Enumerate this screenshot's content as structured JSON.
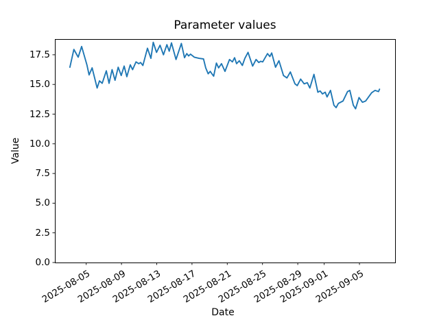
{
  "window": {
    "kind": "matplotlib-style figure",
    "background": "#ffffff"
  },
  "chart": {
    "title": "Parameter values",
    "xlabel": "Date",
    "ylabel": "Value"
  },
  "chart_data": {
    "type": "line",
    "title": "Parameter values",
    "xlabel": "Date",
    "ylabel": "Value",
    "grid": false,
    "legend": false,
    "x_axis": {
      "start_date": "2025-08-03",
      "x_unit": "days since 2025-08-03",
      "tick_labels": [
        "2025-08-05",
        "2025-08-09",
        "2025-08-13",
        "2025-08-17",
        "2025-08-21",
        "2025-08-25",
        "2025-08-29",
        "2025-09-01",
        "2025-09-05"
      ],
      "tick_day_offsets": [
        2,
        6,
        10,
        14,
        18,
        22,
        26,
        29,
        33
      ],
      "tick_rotation_deg": 31
    },
    "y_axis": {
      "tick_labels": [
        "0.0",
        "2.5",
        "5.0",
        "7.5",
        "10.0",
        "12.5",
        "15.0",
        "17.5"
      ],
      "tick_values": [
        0,
        2.5,
        5,
        7.5,
        10,
        12.5,
        15,
        17.5
      ],
      "range": [
        0,
        18.8
      ]
    },
    "series": [
      {
        "name": "parameter-values",
        "color": "#1f77b4",
        "x_days": [
          0.15,
          0.6,
          1.09,
          1.48,
          2.08,
          2.33,
          2.67,
          3.24,
          3.5,
          3.81,
          4.28,
          4.59,
          4.93,
          5.27,
          5.63,
          5.97,
          6.3,
          6.61,
          7.0,
          7.26,
          7.65,
          7.96,
          8.17,
          8.43,
          8.95,
          9.34,
          9.6,
          9.98,
          10.37,
          10.76,
          11.15,
          11.42,
          11.67,
          12.19,
          12.79,
          13.15,
          13.41,
          13.62,
          13.83,
          14.26,
          14.79,
          15.31,
          15.56,
          15.84,
          16.07,
          16.3,
          16.46,
          16.77,
          17.02,
          17.35,
          17.74,
          18.26,
          18.58,
          18.83,
          19.06,
          19.37,
          19.71,
          20.0,
          20.36,
          20.88,
          21.27,
          21.58,
          21.79,
          22.02,
          22.57,
          22.83,
          23.04,
          23.48,
          23.87,
          24.38,
          24.77,
          25.16,
          25.68,
          25.94,
          26.33,
          26.72,
          27.08,
          27.37,
          27.84,
          28.28,
          28.54,
          28.8,
          29.11,
          29.32,
          29.71,
          30.1,
          30.35,
          30.61,
          31.13,
          31.65,
          31.91,
          32.3,
          32.56,
          32.95,
          33.34,
          33.7,
          34.38,
          34.77,
          35.16,
          35.28
        ],
        "values": [
          16.45,
          17.95,
          17.3,
          18.2,
          16.65,
          15.8,
          16.4,
          14.7,
          15.3,
          15.1,
          16.15,
          15.1,
          16.25,
          15.35,
          16.45,
          15.75,
          16.55,
          15.65,
          16.65,
          16.25,
          16.9,
          16.75,
          16.85,
          16.6,
          18.05,
          17.2,
          18.55,
          17.7,
          18.3,
          17.5,
          18.35,
          17.8,
          18.5,
          17.1,
          18.45,
          17.25,
          17.6,
          17.4,
          17.55,
          17.3,
          17.2,
          17.15,
          16.4,
          15.9,
          16.1,
          15.85,
          15.7,
          16.8,
          16.4,
          16.75,
          16.1,
          17.1,
          16.9,
          17.25,
          16.75,
          17.0,
          16.6,
          17.2,
          17.7,
          16.55,
          17.1,
          16.85,
          16.95,
          16.9,
          17.6,
          17.35,
          17.65,
          16.45,
          17.0,
          15.75,
          15.55,
          16.05,
          15.05,
          14.9,
          15.45,
          15.05,
          15.15,
          14.7,
          15.85,
          14.35,
          14.45,
          14.2,
          14.35,
          13.95,
          14.5,
          13.25,
          13.05,
          13.4,
          13.6,
          14.4,
          14.5,
          13.25,
          12.95,
          13.9,
          13.5,
          13.6,
          14.3,
          14.5,
          14.4,
          14.6
        ]
      }
    ]
  },
  "colors": {
    "line": "#1f77b4",
    "axis": "#000000",
    "background": "#ffffff"
  }
}
